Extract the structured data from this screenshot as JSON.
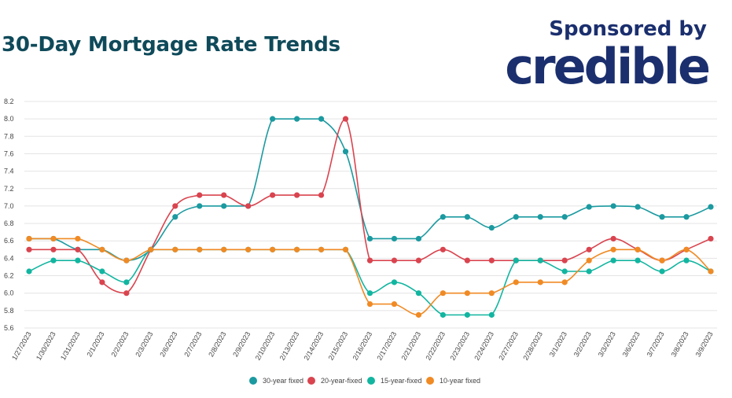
{
  "header": {
    "title": "30-Day Mortgage Rate Trends",
    "sponsor_label": "Sponsored by",
    "sponsor_logo_text": "credible"
  },
  "chart_data": {
    "type": "line",
    "title": "30-Day Mortgage Rate Trends",
    "xlabel": "",
    "ylabel": "",
    "ylim": [
      5.6,
      8.2
    ],
    "yticks": [
      5.6,
      5.8,
      6.0,
      6.2,
      6.4,
      6.6,
      6.8,
      7.0,
      7.2,
      7.4,
      7.6,
      7.8,
      8.0,
      8.2
    ],
    "grid": true,
    "legend_position": "bottom",
    "x": [
      "1/27/2023",
      "1/30/2023",
      "1/31/2023",
      "2/1/2023",
      "2/2/2023",
      "2/3/2023",
      "2/6/2023",
      "2/7/2023",
      "2/8/2023",
      "2/9/2023",
      "2/10/2023",
      "2/13/2023",
      "2/14/2023",
      "2/15/2023",
      "2/16/2023",
      "2/17/2023",
      "2/21/2023",
      "2/22/2023",
      "2/23/2023",
      "2/24/2023",
      "2/27/2023",
      "2/28/2023",
      "3/1/2023",
      "3/2/2023",
      "3/3/2023",
      "3/6/2023",
      "3/7/2023",
      "3/8/2023",
      "3/9/2023"
    ],
    "series": [
      {
        "name": "30-year fixed",
        "color": "#1b9aa0",
        "values": [
          6.625,
          6.625,
          6.5,
          6.5,
          6.375,
          6.5,
          6.875,
          7.0,
          7.0,
          7.0,
          8.0,
          8.0,
          8.0,
          7.625,
          6.625,
          6.625,
          6.625,
          6.875,
          6.875,
          6.75,
          6.875,
          6.875,
          6.875,
          6.99,
          7.0,
          6.99,
          6.875,
          6.875,
          6.99
        ]
      },
      {
        "name": "20-year-fixed",
        "color": "#d9444f",
        "values": [
          6.5,
          6.5,
          6.5,
          6.125,
          6.0,
          6.5,
          7.0,
          7.125,
          7.125,
          7.0,
          7.125,
          7.125,
          7.125,
          8.0,
          6.375,
          6.375,
          6.375,
          6.5,
          6.375,
          6.375,
          6.375,
          6.375,
          6.375,
          6.5,
          6.625,
          6.5,
          6.375,
          6.5,
          6.625
        ]
      },
      {
        "name": "15-year-fixed",
        "color": "#12b5a0",
        "values": [
          6.25,
          6.375,
          6.375,
          6.25,
          6.125,
          6.5,
          6.5,
          6.5,
          6.5,
          6.5,
          6.5,
          6.5,
          6.5,
          6.5,
          6.0,
          6.125,
          6.0,
          5.75,
          5.75,
          5.75,
          6.375,
          6.375,
          6.25,
          6.25,
          6.375,
          6.375,
          6.25,
          6.375,
          6.25
        ]
      },
      {
        "name": "10-year fixed",
        "color": "#f08a24",
        "values": [
          6.625,
          6.625,
          6.625,
          6.5,
          6.375,
          6.5,
          6.5,
          6.5,
          6.5,
          6.5,
          6.5,
          6.5,
          6.5,
          6.5,
          5.875,
          5.875,
          5.75,
          6.0,
          6.0,
          6.0,
          6.125,
          6.125,
          6.125,
          6.375,
          6.5,
          6.5,
          6.375,
          6.5,
          6.25
        ]
      }
    ]
  }
}
